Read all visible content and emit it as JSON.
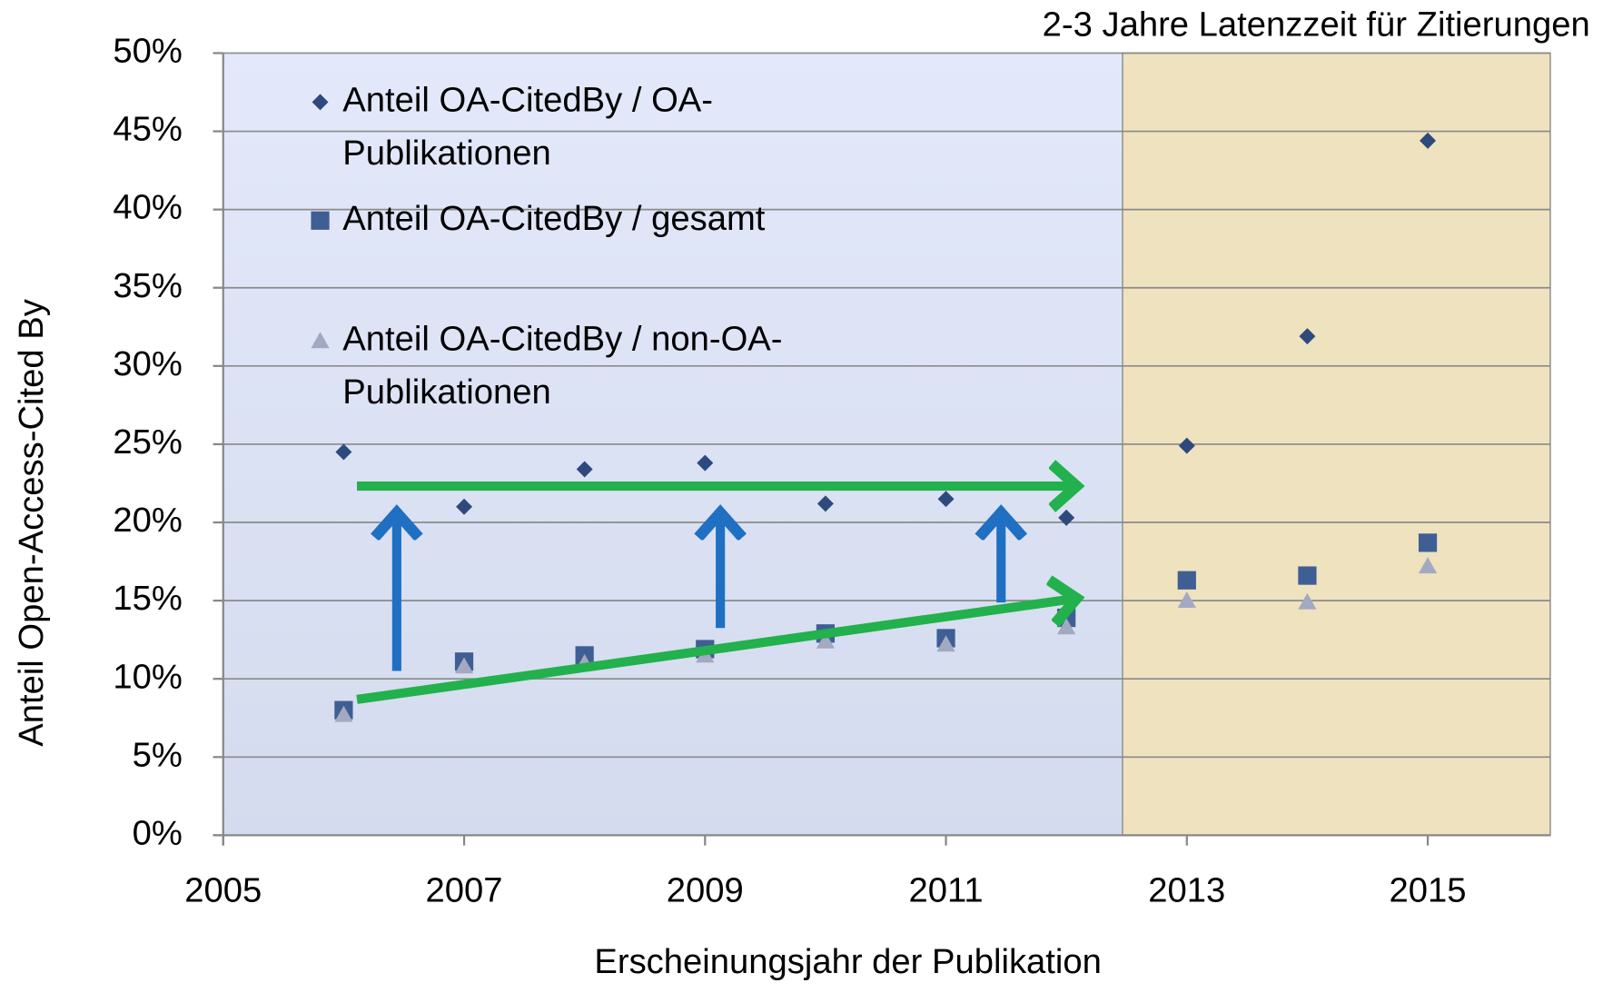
{
  "chart_data": {
    "type": "scatter",
    "annotation": "2-3 Jahre Latenzzeit für Zitierungen",
    "xlabel": "Erscheinungsjahr der Publikation",
    "ylabel": "Anteil Open-Access-Cited By",
    "xlim": [
      2005,
      2016
    ],
    "xticks": [
      2005,
      2007,
      2009,
      2011,
      2013,
      2015
    ],
    "ylim": [
      0,
      50
    ],
    "yticks": [
      {
        "value": 0,
        "label": "0%"
      },
      {
        "value": 5,
        "label": "5%"
      },
      {
        "value": 10,
        "label": "10%"
      },
      {
        "value": 15,
        "label": "15%"
      },
      {
        "value": 20,
        "label": "20%"
      },
      {
        "value": 25,
        "label": "25%"
      },
      {
        "value": 30,
        "label": "30%"
      },
      {
        "value": 35,
        "label": "35%"
      },
      {
        "value": 40,
        "label": "40%"
      },
      {
        "value": 45,
        "label": "45%"
      },
      {
        "value": 50,
        "label": "50%"
      }
    ],
    "grid": true,
    "x": [
      2006,
      2007,
      2008,
      2009,
      2010,
      2011,
      2012,
      2013,
      2014,
      2015
    ],
    "series": [
      {
        "name": "Anteil OA-CitedBy / OA-Publikationen",
        "marker": "diamond",
        "color": "#2e4a7d",
        "values": [
          24.5,
          21.0,
          23.4,
          23.8,
          21.2,
          21.5,
          20.3,
          24.9,
          31.9,
          44.4
        ]
      },
      {
        "name": "Anteil OA-CitedBy / gesamt",
        "marker": "square",
        "color": "#3f5f94",
        "values": [
          8.0,
          11.1,
          11.5,
          11.9,
          12.9,
          12.6,
          13.9,
          16.3,
          16.6,
          18.7
        ]
      },
      {
        "name": "Anteil OA-CitedBy / non-OA-Publikationen",
        "marker": "triangle",
        "color": "#a3a9c0",
        "values": [
          7.7,
          10.8,
          11.0,
          11.5,
          12.4,
          12.2,
          13.3,
          15.0,
          14.9,
          17.2
        ]
      }
    ]
  }
}
